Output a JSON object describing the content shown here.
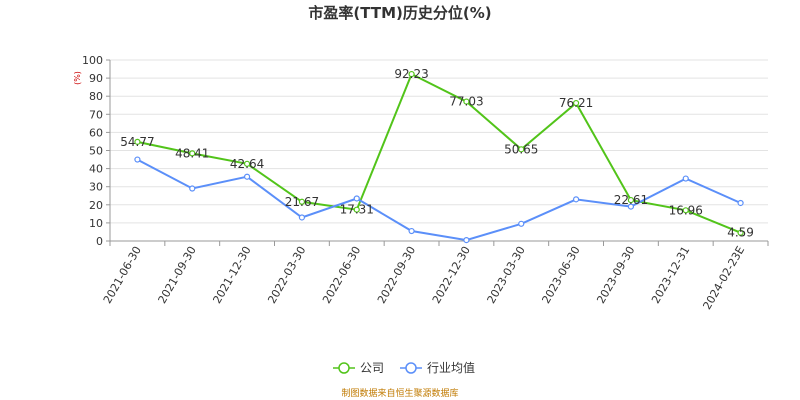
{
  "chart_data": {
    "type": "line",
    "title": "市盈率(TTM)历史分位(%)",
    "ylabel": "(%)",
    "ylim": [
      0,
      100
    ],
    "yticks": [
      "0",
      "10",
      "20",
      "30",
      "40",
      "50",
      "60",
      "70",
      "80",
      "90",
      "100"
    ],
    "categories": [
      "2021-06-30",
      "2021-09-30",
      "2021-12-30",
      "2022-03-30",
      "2022-06-30",
      "2022-09-30",
      "2022-12-30",
      "2023-03-30",
      "2023-06-30",
      "2023-09-30",
      "2023-12-31",
      "2024-02-23E"
    ],
    "series": [
      {
        "name": "公司",
        "color": "#52c41a",
        "values": [
          54.77,
          48.41,
          42.64,
          21.67,
          17.31,
          92.23,
          77.03,
          50.65,
          76.21,
          22.61,
          16.96,
          4.59
        ],
        "labels": [
          "54.77",
          "48.41",
          "42.64",
          "21.67",
          "17.31",
          "92.23",
          "77.03",
          "50.65",
          "76.21",
          "22.61",
          "16.96",
          "4.59"
        ]
      },
      {
        "name": "行业均值",
        "color": "#5b8ff9",
        "values": [
          45,
          29,
          35.5,
          13,
          23.5,
          5.5,
          0.5,
          9.5,
          23,
          19,
          34.5,
          21
        ]
      }
    ],
    "grid": true,
    "legend": "bottom-center"
  },
  "footer": {
    "source": "制图数据来自恒生聚源数据库"
  }
}
